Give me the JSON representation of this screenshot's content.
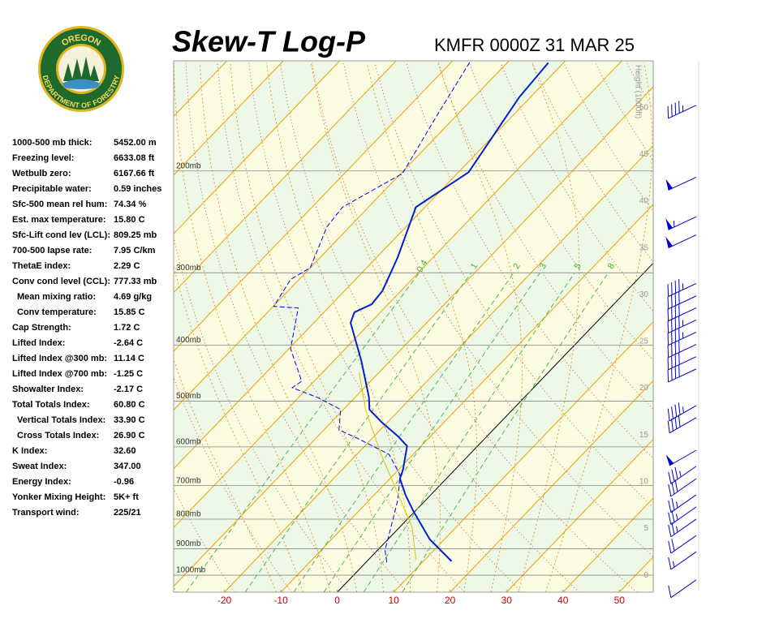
{
  "header": {
    "logo_top": "OREGON",
    "logo_bottom": "DEPARTMENT OF FORESTRY",
    "title": "Skew-T Log-P",
    "station": "KMFR 0000Z 31 MAR 25"
  },
  "indices": [
    {
      "label": "1000-500 mb thick:",
      "value": "5452.00 m"
    },
    {
      "label": "Freezing level:",
      "value": "6633.08 ft"
    },
    {
      "label": "Wetbulb zero:",
      "value": "6167.66 ft"
    },
    {
      "label": "Precipitable water:",
      "value": "0.59 inches"
    },
    {
      "label": "Sfc-500 mean rel hum:",
      "value": "74.34 %"
    },
    {
      "label": "Est. max temperature:",
      "value": "15.80 C"
    },
    {
      "label": "Sfc-Lift cond lev (LCL):",
      "value": "809.25 mb"
    },
    {
      "label": "700-500 lapse rate:",
      "value": "7.95 C/km"
    },
    {
      "label": "ThetaE index:",
      "value": "2.29 C"
    },
    {
      "label": "Conv cond level (CCL):",
      "value": "777.33 mb"
    },
    {
      "label": "Mean mixing ratio:",
      "value": "4.69 g/kg",
      "sub": true
    },
    {
      "label": "Conv temperature:",
      "value": "15.85 C",
      "sub": true
    },
    {
      "label": "Cap Strength:",
      "value": "1.72 C"
    },
    {
      "label": "Lifted Index:",
      "value": "-2.64 C"
    },
    {
      "label": "Lifted Index @300 mb:",
      "value": "11.14 C"
    },
    {
      "label": "Lifted Index @700 mb:",
      "value": "-1.25 C"
    },
    {
      "label": "Showalter Index:",
      "value": "-2.17 C"
    },
    {
      "label": "Total Totals Index:",
      "value": "60.80 C"
    },
    {
      "label": "Vertical Totals Index:",
      "value": "33.90 C",
      "sub": true
    },
    {
      "label": "Cross Totals Index:",
      "value": "26.90 C",
      "sub": true
    },
    {
      "label": "K Index:",
      "value": "32.60"
    },
    {
      "label": "Sweat Index:",
      "value": "347.00"
    },
    {
      "label": "Energy Index:",
      "value": "-0.96"
    },
    {
      "label": "Yonker Mixing Height:",
      "value": "5K+ ft"
    },
    {
      "label": "Transport wind:",
      "value": "225/21"
    }
  ],
  "chart_data": {
    "type": "skewt",
    "xlim": [
      -29,
      56
    ],
    "xticks": [
      -20,
      -10,
      0,
      10,
      20,
      30,
      40,
      50
    ],
    "xtick_color": "#cc0000",
    "ylim": [
      1070,
      129
    ],
    "log_y": true,
    "yticks": [
      {
        "value": 200,
        "label": "200mb"
      },
      {
        "value": 300,
        "label": "300mb"
      },
      {
        "value": 400,
        "label": "400mb"
      },
      {
        "value": 500,
        "label": "500mb"
      },
      {
        "value": 600,
        "label": "600mb"
      },
      {
        "value": 700,
        "label": "700mb"
      },
      {
        "value": 800,
        "label": "800mb"
      },
      {
        "value": 900,
        "label": "900mb"
      },
      {
        "value": 1000,
        "label": "1000mb"
      }
    ],
    "height_label": "Height (1000ft)",
    "height_lim": [
      -1.8,
      55
    ],
    "height_ticks": [
      0,
      5,
      10,
      15,
      20,
      25,
      30,
      35,
      40,
      45,
      50
    ],
    "mixing_ratios": [
      0.4,
      1,
      2,
      3,
      5,
      8
    ],
    "series": [
      {
        "color": "#0022cc",
        "style": "solid",
        "width": 2,
        "pressure": [
          946,
          867,
          775,
          726,
          681,
          655,
          598,
          575,
          543,
          517,
          493,
          426,
          366,
          351,
          340,
          322,
          283,
          231,
          201,
          149,
          130
        ],
        "temperature": [
          15.0,
          7.4,
          -0.3,
          -4.5,
          -8.2,
          -9.3,
          -12.5,
          -15.8,
          -21.2,
          -25.4,
          -27.5,
          -35.1,
          -43.5,
          -44.6,
          -42.9,
          -43.3,
          -46.2,
          -51.6,
          -48.2,
          -52.0,
          -52.7
        ]
      },
      {
        "color": "#0000ff",
        "style": "dashed",
        "width": 1,
        "pressure": [
          950,
          905,
          854,
          745,
          703,
          670,
          618,
          579,
          561,
          517,
          493,
          474,
          462,
          406,
          345,
          343,
          308,
          294,
          250,
          231,
          202,
          159,
          129
        ],
        "temperature": [
          3.7,
          1.3,
          -0.5,
          -4.8,
          -7.0,
          -8.9,
          -14.3,
          -22.8,
          -27.3,
          -30.5,
          -36.6,
          -42.8,
          -42.2,
          -49.7,
          -55.3,
          -59.9,
          -61.5,
          -60.0,
          -64.0,
          -64.6,
          -59.7,
          -63.6,
          -66.8
        ]
      },
      {
        "color": "#d8c800",
        "style": "solid",
        "width": 1,
        "pressure": [
          940,
          826,
          618,
          517,
          447
        ],
        "temperature": [
          8.4,
          2.2,
          -15.7,
          -26.1,
          -33.4
        ]
      }
    ],
    "wind_color": "#0000cc",
    "winds": [
      {
        "pressure": 154,
        "direction": 245,
        "speed": 45
      },
      {
        "pressure": 205,
        "direction": 245,
        "speed": 50
      },
      {
        "pressure": 240,
        "direction": 245,
        "speed": 55
      },
      {
        "pressure": 258,
        "direction": 245,
        "speed": 50
      },
      {
        "pressure": 313,
        "direction": 245,
        "speed": 45
      },
      {
        "pressure": 329,
        "direction": 245,
        "speed": 40
      },
      {
        "pressure": 345,
        "direction": 245,
        "speed": 40
      },
      {
        "pressure": 362,
        "direction": 245,
        "speed": 45
      },
      {
        "pressure": 380,
        "direction": 245,
        "speed": 45
      },
      {
        "pressure": 399,
        "direction": 245,
        "speed": 40
      },
      {
        "pressure": 419,
        "direction": 245,
        "speed": 40
      },
      {
        "pressure": 440,
        "direction": 245,
        "speed": 40
      },
      {
        "pressure": 509,
        "direction": 240,
        "speed": 45
      },
      {
        "pressure": 534,
        "direction": 240,
        "speed": 40
      },
      {
        "pressure": 608,
        "direction": 240,
        "speed": 50
      },
      {
        "pressure": 648,
        "direction": 235,
        "speed": 35
      },
      {
        "pressure": 681,
        "direction": 235,
        "speed": 30
      },
      {
        "pressure": 726,
        "direction": 235,
        "speed": 25
      },
      {
        "pressure": 762,
        "direction": 235,
        "speed": 25
      },
      {
        "pressure": 800,
        "direction": 235,
        "speed": 25
      },
      {
        "pressure": 854,
        "direction": 235,
        "speed": 20
      },
      {
        "pressure": 911,
        "direction": 235,
        "speed": 15
      },
      {
        "pressure": 1019,
        "direction": 235,
        "speed": 10
      }
    ]
  }
}
